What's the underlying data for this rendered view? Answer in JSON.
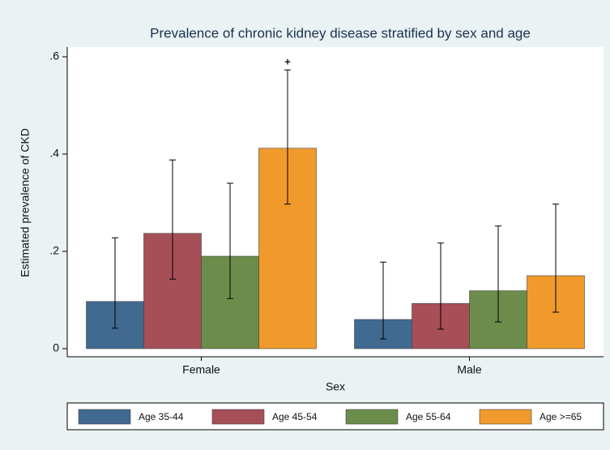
{
  "chart_data": {
    "type": "bar",
    "title": "Prevalence of chronic kidney disease stratified by sex and age",
    "x_label": "Sex",
    "y_label": "Estimated prevalence of CKD",
    "categories": [
      "Female",
      "Male"
    ],
    "series": [
      {
        "name": "Age 35-44",
        "color": "#416a91",
        "values": [
          0.097,
          0.06
        ],
        "ci_low": [
          0.042,
          0.02
        ],
        "ci_high": [
          0.228,
          0.178
        ]
      },
      {
        "name": "Age 45-54",
        "color": "#a64f57",
        "values": [
          0.237,
          0.093
        ],
        "ci_low": [
          0.143,
          0.04
        ],
        "ci_high": [
          0.388,
          0.217
        ]
      },
      {
        "name": "Age 55-64",
        "color": "#6c8c4b",
        "values": [
          0.19,
          0.119
        ],
        "ci_low": [
          0.103,
          0.055
        ],
        "ci_high": [
          0.34,
          0.252
        ]
      },
      {
        "name": "Age >=65",
        "color": "#f09a2c",
        "values": [
          0.412,
          0.15
        ],
        "ci_low": [
          0.297,
          0.075
        ],
        "ci_high": [
          0.573,
          0.297
        ]
      }
    ],
    "annotation": "+",
    "ylim": [
      0,
      0.6
    ],
    "yticks": [
      0,
      {
        "value": 0.2,
        "label": ".2"
      },
      {
        "value": 0.4,
        "label": ".4"
      },
      {
        "value": 0.6,
        "label": ".6"
      }
    ],
    "grid": false,
    "legend": "bottom"
  }
}
